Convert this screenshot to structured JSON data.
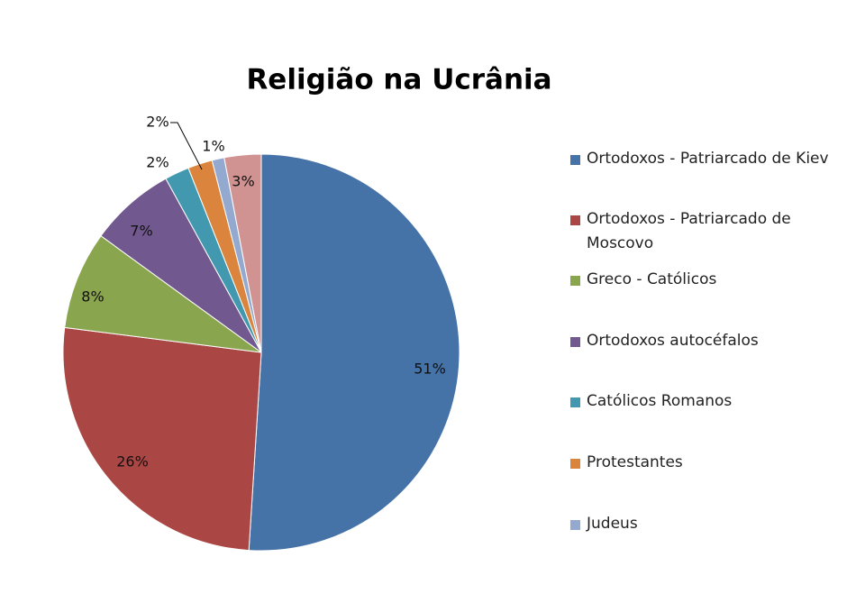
{
  "chart_data": {
    "type": "pie",
    "title": "Religião na Ucrânia",
    "categories": [
      "Ortodoxos - Patriarcado de Kiev",
      "Ortodoxos - Patriarcado de Moscovo",
      "Greco - Católicos",
      "Ortodoxos autocéfalos",
      "Católicos Romanos",
      "Protestantes",
      "Judeus",
      null
    ],
    "values": [
      51,
      26,
      8,
      7,
      2,
      2,
      1,
      3
    ],
    "value_labels": [
      "51%",
      "26%",
      "8%",
      "7%",
      "2%",
      "2%",
      "1%",
      "3%"
    ],
    "colors": [
      "#4572a7",
      "#aa4643",
      "#89a54e",
      "#71588f",
      "#4198af",
      "#db843d",
      "#93a9cf",
      "#d19392"
    ]
  }
}
